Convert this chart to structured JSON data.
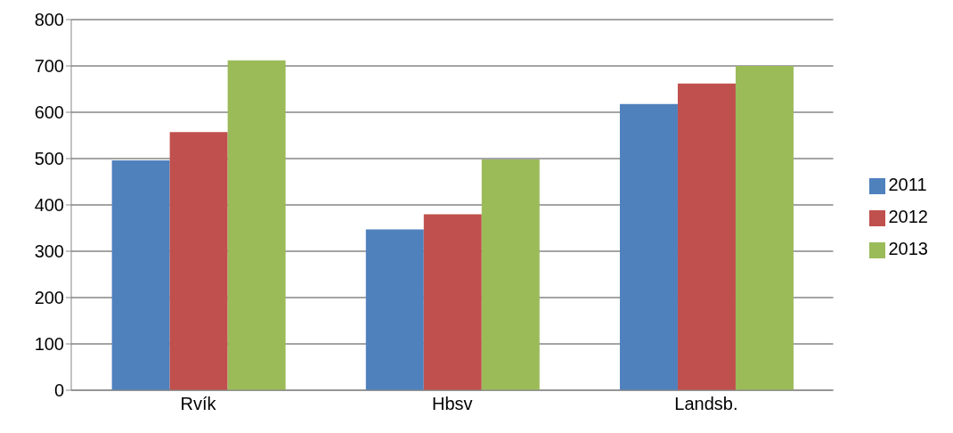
{
  "chart_data": {
    "type": "bar",
    "categories": [
      "Rvík",
      "Hbsv",
      "Landsb."
    ],
    "series": [
      {
        "name": "2011",
        "color": "#4f81bd",
        "values": [
          496,
          347,
          618
        ]
      },
      {
        "name": "2012",
        "color": "#c0504d",
        "values": [
          557,
          380,
          662
        ]
      },
      {
        "name": "2013",
        "color": "#9bbb59",
        "values": [
          712,
          498,
          700
        ]
      }
    ],
    "ylim": [
      0,
      800
    ],
    "yticks": [
      0,
      100,
      200,
      300,
      400,
      500,
      600,
      700,
      800
    ],
    "grid": "y",
    "legend": "right"
  }
}
